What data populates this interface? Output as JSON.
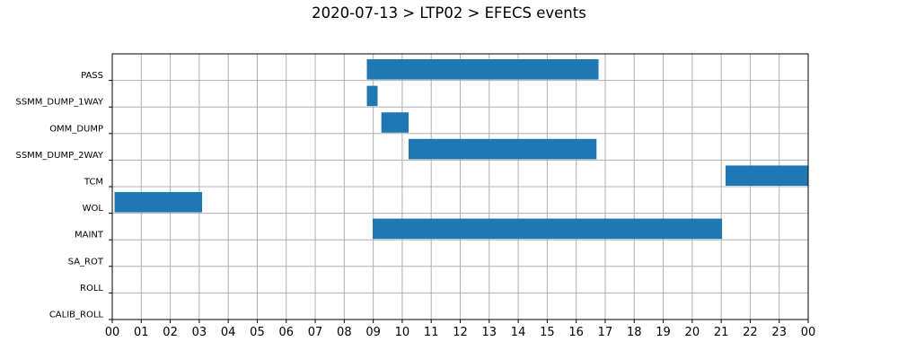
{
  "chart_data": {
    "type": "gantt",
    "title": "2020-07-13 > LTP02 > EFECS events",
    "xlabel": "",
    "ylabel": "",
    "x_unit": "hour of day",
    "xlim": [
      0,
      24
    ],
    "x_tick_labels": [
      "00",
      "01",
      "02",
      "03",
      "04",
      "05",
      "06",
      "07",
      "08",
      "09",
      "10",
      "11",
      "12",
      "13",
      "14",
      "15",
      "16",
      "17",
      "18",
      "19",
      "20",
      "21",
      "22",
      "23",
      "00"
    ],
    "categories": [
      "PASS",
      "SSMM_DUMP_1WAY",
      "OMM_DUMP",
      "SSMM_DUMP_2WAY",
      "TCM",
      "WOL",
      "MAINT",
      "SA_ROT",
      "ROLL",
      "CALIB_ROLL"
    ],
    "grid": true,
    "bar_color": "#1f77b4",
    "events": [
      {
        "category": "PASS",
        "start": 8.78,
        "end": 16.77
      },
      {
        "category": "SSMM_DUMP_1WAY",
        "start": 8.78,
        "end": 9.15
      },
      {
        "category": "OMM_DUMP",
        "start": 9.28,
        "end": 10.22
      },
      {
        "category": "SSMM_DUMP_2WAY",
        "start": 10.22,
        "end": 16.7
      },
      {
        "category": "TCM",
        "start": 21.15,
        "end": 24.0
      },
      {
        "category": "WOL",
        "start": 0.08,
        "end": 3.1
      },
      {
        "category": "MAINT",
        "start": 8.98,
        "end": 21.03
      }
    ]
  }
}
